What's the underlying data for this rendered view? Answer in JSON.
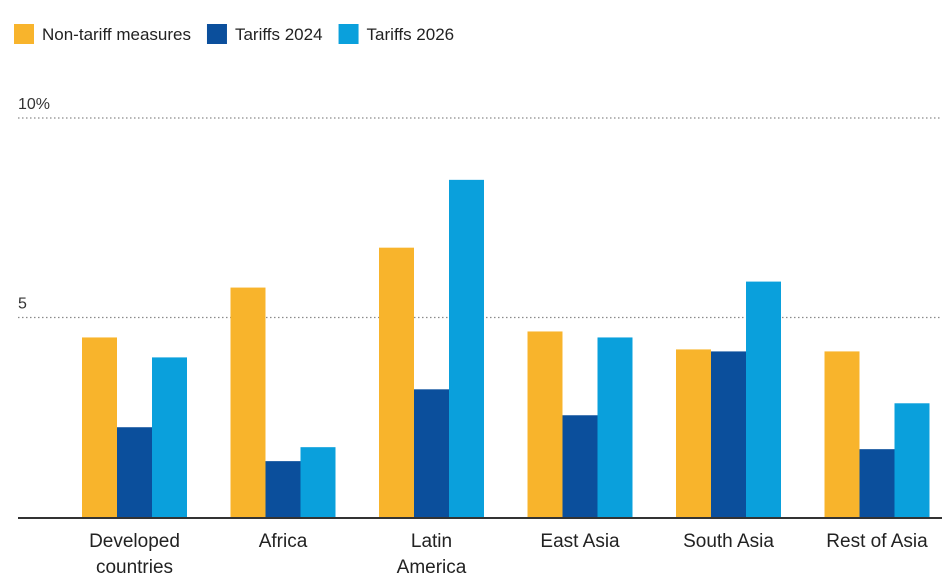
{
  "chart_data": {
    "type": "bar",
    "title": "",
    "xlabel": "",
    "ylabel": "",
    "ylim": [
      0,
      10
    ],
    "grid": true,
    "legend_position": "top-left",
    "yticks": [
      {
        "value": 5,
        "label": "5"
      },
      {
        "value": 10,
        "label": "10%"
      }
    ],
    "categories": [
      [
        "Developed",
        "countries"
      ],
      [
        "Africa"
      ],
      [
        "Latin",
        "America"
      ],
      [
        "East Asia"
      ],
      [
        "South Asia"
      ],
      [
        "Rest of Asia"
      ]
    ],
    "series": [
      {
        "name": "Non-tariff measures",
        "color": "#f8b42c",
        "values": [
          4.5,
          5.75,
          6.75,
          4.65,
          4.2,
          4.15
        ]
      },
      {
        "name": "Tariffs 2024",
        "color": "#0b4f9c",
        "values": [
          2.25,
          1.4,
          3.2,
          2.55,
          4.15,
          1.7
        ]
      },
      {
        "name": "Tariffs 2026",
        "color": "#0aa0dc",
        "values": [
          4.0,
          1.75,
          8.45,
          4.5,
          5.9,
          2.85
        ]
      }
    ]
  }
}
